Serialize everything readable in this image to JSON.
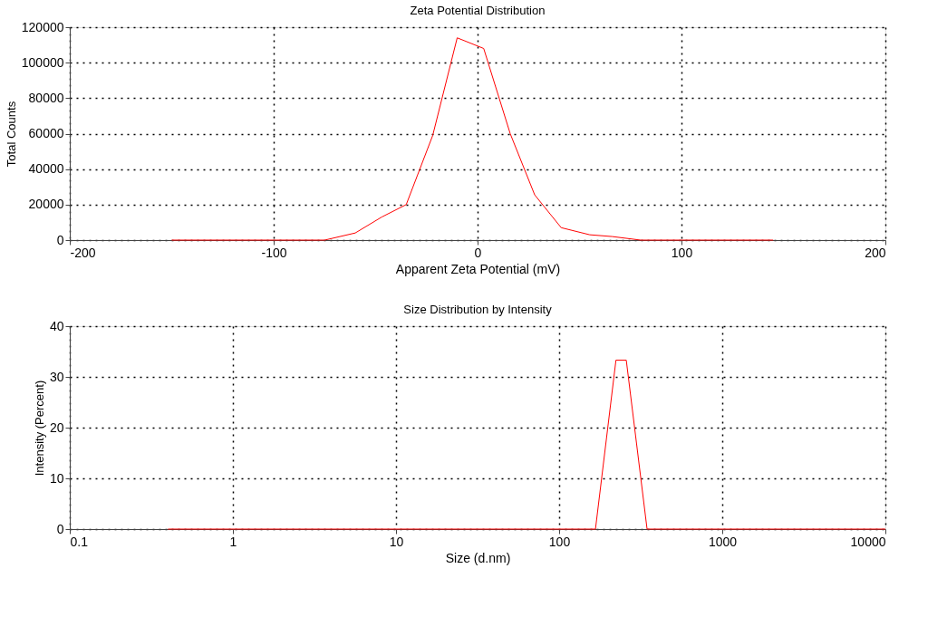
{
  "chart_data": [
    {
      "type": "line",
      "title": "Zeta Potential Distribution",
      "xlabel": "Apparent Zeta Potential (mV)",
      "ylabel": "Total Counts",
      "color": "#ff0000",
      "x": [
        -150,
        -100,
        -75,
        -60,
        -47,
        -35,
        -22,
        -10,
        3,
        16,
        28,
        41,
        55,
        66,
        80,
        145
      ],
      "values": [
        0,
        0,
        0,
        4000,
        13000,
        20000,
        59000,
        114000,
        108000,
        60000,
        25500,
        7000,
        3000,
        2000,
        0,
        0
      ],
      "xlim": [
        -200,
        200
      ],
      "xticks": [
        -200,
        -100,
        0,
        100,
        200
      ],
      "ylim": [
        0,
        120000
      ],
      "yticks": [
        0,
        20000,
        40000,
        60000,
        80000,
        100000,
        120000
      ],
      "grid": true
    },
    {
      "type": "line",
      "title": "Size Distribution by Intensity",
      "xlabel": "Size (d.nm)",
      "ylabel": "Intensity (Percent)",
      "color": "#ff0000",
      "x": [
        0.4,
        167,
        223,
        258,
        346,
        10000
      ],
      "values": [
        0,
        0,
        33.3,
        33.3,
        0,
        0
      ],
      "xlim": [
        0.1,
        10000
      ],
      "xticks": [
        0.1,
        1,
        10,
        100,
        1000,
        10000
      ],
      "ylim": [
        0,
        40
      ],
      "yticks": [
        0,
        10,
        20,
        30,
        40
      ],
      "grid": true,
      "log": "x"
    }
  ]
}
